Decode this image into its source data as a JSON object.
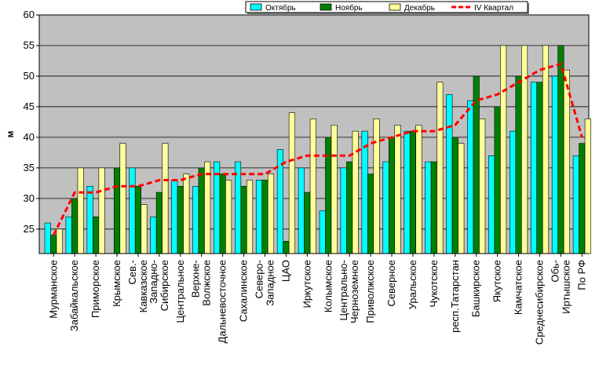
{
  "chart_data": {
    "type": "bar",
    "ylabel": "м",
    "ylim": [
      21,
      60
    ],
    "yticks": [
      25,
      30,
      35,
      40,
      45,
      50,
      55,
      60
    ],
    "grid": true,
    "legend_position": "top-right",
    "colors": {
      "plot_bg": "#c0c0c0",
      "october": "#00ffff",
      "november": "#007f00",
      "december": "#ffff99",
      "quarter_line": "#ff0000"
    },
    "categories": [
      "Мурманское",
      "Забайкальское",
      "Приморское",
      "Крымское",
      "Сев.-Кавказское",
      "Западно-Сибирское",
      "Центральное",
      "Верхне-Волжское",
      "Дальневосточное",
      "Сахалинское",
      "Северо-Западное",
      "ЦАО",
      "Иркутское",
      "Колымское",
      "Центрально-Черноземное",
      "Приволжское",
      "Северное",
      "Уральское",
      "Чукотское",
      "респ.Татарстан",
      "Башкирское",
      "Якутское",
      "Камчатское",
      "Среднесибирское",
      "Обь-Иртышское",
      "По РФ"
    ],
    "category_label_lines": [
      [
        "Мурманское"
      ],
      [
        "Забайкальское"
      ],
      [
        "Приморское"
      ],
      [
        "Крымское"
      ],
      [
        "Сев.-",
        "Кавказское"
      ],
      [
        "Западно-",
        "Сибирское"
      ],
      [
        "Центральное"
      ],
      [
        "Верхне-",
        "Волжское"
      ],
      [
        "Дальневосточное"
      ],
      [
        "Сахалинское"
      ],
      [
        "Северо-",
        "Западное"
      ],
      [
        "ЦАО"
      ],
      [
        "Иркутское"
      ],
      [
        "Колымское"
      ],
      [
        "Центрально-",
        "Черноземное"
      ],
      [
        "Приволжское"
      ],
      [
        "Северное"
      ],
      [
        "Уральское"
      ],
      [
        "Чукотское"
      ],
      [
        "респ.Татарстан"
      ],
      [
        "Башкирское"
      ],
      [
        "Якутское"
      ],
      [
        "Камчатское"
      ],
      [
        "Среднесибирское"
      ],
      [
        "Обь-",
        "Иртышское"
      ],
      [
        "По РФ"
      ]
    ],
    "series": [
      {
        "name": "Октябрь",
        "kind": "bar",
        "values": [
          26,
          27,
          32,
          21,
          35,
          27,
          33,
          32,
          36,
          36,
          33,
          38,
          35,
          28,
          35,
          41,
          36,
          41,
          36,
          47,
          46,
          37,
          41,
          49,
          50,
          37
        ]
      },
      {
        "name": "Ноябрь",
        "kind": "bar",
        "values": [
          24,
          30,
          27,
          35,
          32,
          31,
          32,
          35,
          34,
          32,
          33,
          23,
          31,
          40,
          36,
          34,
          40,
          41,
          36,
          40,
          50,
          45,
          50,
          49,
          55,
          39
        ]
      },
      {
        "name": "Декабрь",
        "kind": "bar",
        "values": [
          25,
          35,
          35,
          39,
          29,
          39,
          34,
          36,
          33,
          33,
          34,
          44,
          43,
          42,
          41,
          43,
          42,
          42,
          49,
          39,
          43,
          55,
          55,
          55,
          51,
          43
        ]
      },
      {
        "name": "IV Квартал",
        "kind": "line",
        "values": [
          24,
          31,
          31,
          32,
          32,
          33,
          33,
          34,
          34,
          34,
          34,
          36,
          37,
          37,
          37,
          39,
          40,
          41,
          41,
          42,
          46,
          47,
          49,
          51,
          52,
          40
        ]
      }
    ]
  }
}
